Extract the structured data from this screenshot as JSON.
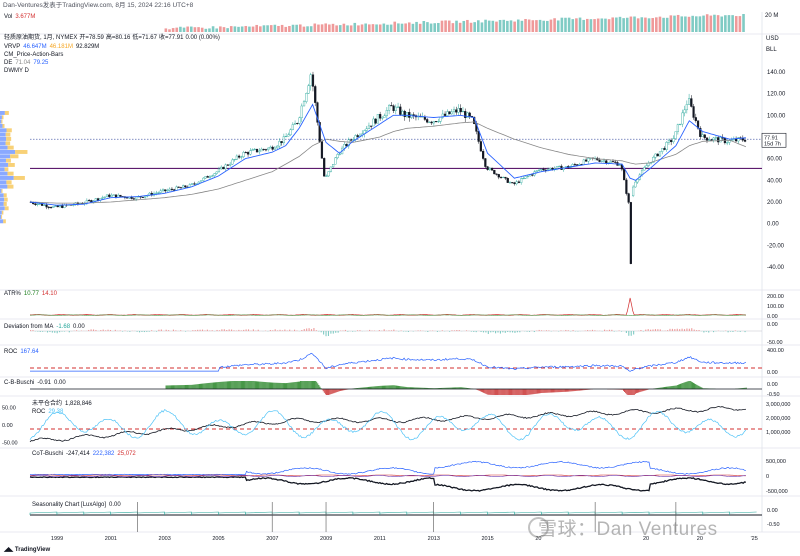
{
  "header": {
    "caption": "Dan-Ventures发表于TradingView.com, 8月 15, 2024 22:16 UTC+8"
  },
  "footer": {
    "logo": "TradingView"
  },
  "watermark": {
    "text": "雪球：Dan Ventures"
  },
  "currency": {
    "label1": "USD",
    "label2": "BLL"
  },
  "panes": {
    "vol": {
      "name": "Vol",
      "value": "3.677M",
      "axis_top": "20 M"
    },
    "main": {
      "symbol": "轻质原油期货, 1月, NYMEX",
      "open": "开=78.59",
      "high": "高=80.16",
      "low": "低=71.67",
      "close": "收=77.91",
      "change": "0.00 (0.00%)",
      "vrvp_name": "VRVP",
      "vrvp_v1": "46.647M",
      "vrvp_v2": "46.181M",
      "vrvp_v3": "92.829M",
      "cm_name": "CM_Price-Action-Bars",
      "de_name": "DE",
      "de_v1": "71.04",
      "de_v2": "79.25",
      "dwmy_name": "DWMY D",
      "price_tag": "77.91",
      "price_tag2": "15d 7h",
      "y_ticks": [
        "140.00",
        "120.00",
        "100.00",
        "80.00",
        "60.00",
        "40.00",
        "20.00",
        "0.00",
        "-20.00",
        "-40.00"
      ]
    },
    "atr": {
      "name": "ATR%",
      "v1": "10.77",
      "v2": "14.10",
      "y_ticks": [
        "200.00",
        "100.00",
        "0.00"
      ]
    },
    "dev": {
      "name": "Deviation from MA",
      "v1": "-1.68",
      "v2": "0.00",
      "y_ticks": [
        "0.00",
        "-50.00"
      ]
    },
    "roc": {
      "name": "ROC",
      "v1": "167.64",
      "y_ticks": [
        "400.00",
        "0.00"
      ]
    },
    "cb": {
      "name": "C-B-Buschi",
      "v1": "-0.91",
      "v2": "0.00",
      "y_ticks": [
        "0.00",
        "-0.50"
      ]
    },
    "oi": {
      "name": "未平仓合约",
      "v1": "1,828,846",
      "roc_name": "ROC",
      "roc_v1": "29.38",
      "left_ticks": [
        "50.00",
        "0.00",
        "-50.00"
      ],
      "y_ticks": [
        "3,000,000",
        "2,000,000",
        "1,000,000"
      ]
    },
    "cot": {
      "name": "CoT-Buschi",
      "v1": "-247,414",
      "v2": "222,382",
      "v3": "25,072",
      "y_ticks": [
        "500,000",
        "0",
        "-500,000"
      ]
    },
    "seas": {
      "name": "Seasonality Chart [LuxAlgo]",
      "v1": "0.00",
      "y_ticks": [
        "0.00",
        "-0.50"
      ]
    }
  },
  "x_axis": {
    "labels": [
      "1999",
      "2001",
      "2003",
      "2005",
      "2007",
      "2009",
      "2011",
      "2013",
      "2015",
      "20",
      "20",
      "20",
      "'25"
    ]
  },
  "colors": {
    "up": "#26a69a",
    "down": "#131722",
    "blue": "#2962ff",
    "gray": "#888888",
    "red": "#d32f2f",
    "green": "#1b7e1b",
    "purple": "#6f3fb5",
    "cyan": "#4fc3f7",
    "hline_purple": "#5e1b6e",
    "hline_dotted": "#5b6bb0"
  },
  "chart_data": {
    "type": "line",
    "title": "轻质原油期货, 1月, NYMEX",
    "ylim": [
      -50,
      150
    ],
    "x": [
      1998.0,
      1999.0,
      2000.0,
      2001.0,
      2002.0,
      2003.0,
      2004.0,
      2005.0,
      2006.0,
      2007.0,
      2007.5,
      2008.0,
      2008.5,
      2009.0,
      2009.5,
      2010.0,
      2011.0,
      2011.5,
      2012.0,
      2013.0,
      2014.0,
      2014.5,
      2015.0,
      2016.0,
      2017.0,
      2018.0,
      2019.0,
      2020.0,
      2020.3,
      2020.5,
      2021.0,
      2022.0,
      2022.5,
      2023.0,
      2024.0,
      2024.6
    ],
    "series": [
      {
        "name": "price",
        "values": [
          20,
          15,
          19,
          26,
          24,
          30,
          35,
          48,
          65,
          70,
          78,
          95,
          140,
          40,
          65,
          78,
          98,
          108,
          100,
          95,
          105,
          95,
          52,
          36,
          50,
          52,
          60,
          55,
          18,
          38,
          55,
          80,
          115,
          80,
          76,
          77.91
        ]
      },
      {
        "name": "ma_fast",
        "values": [
          20,
          17,
          18,
          24,
          25,
          28,
          34,
          44,
          60,
          66,
          72,
          88,
          110,
          75,
          65,
          76,
          92,
          100,
          100,
          98,
          100,
          98,
          65,
          42,
          48,
          52,
          56,
          55,
          42,
          40,
          50,
          72,
          95,
          85,
          78,
          79.25
        ]
      },
      {
        "name": "ma_slow",
        "values": [
          20,
          19,
          19,
          20,
          22,
          24,
          27,
          32,
          40,
          48,
          55,
          62,
          72,
          78,
          76,
          75,
          80,
          85,
          88,
          90,
          93,
          94,
          88,
          78,
          70,
          64,
          60,
          58,
          56,
          55,
          56,
          64,
          72,
          76,
          77,
          71.04
        ]
      }
    ],
    "support_level": 51,
    "current_price": 77.91
  }
}
